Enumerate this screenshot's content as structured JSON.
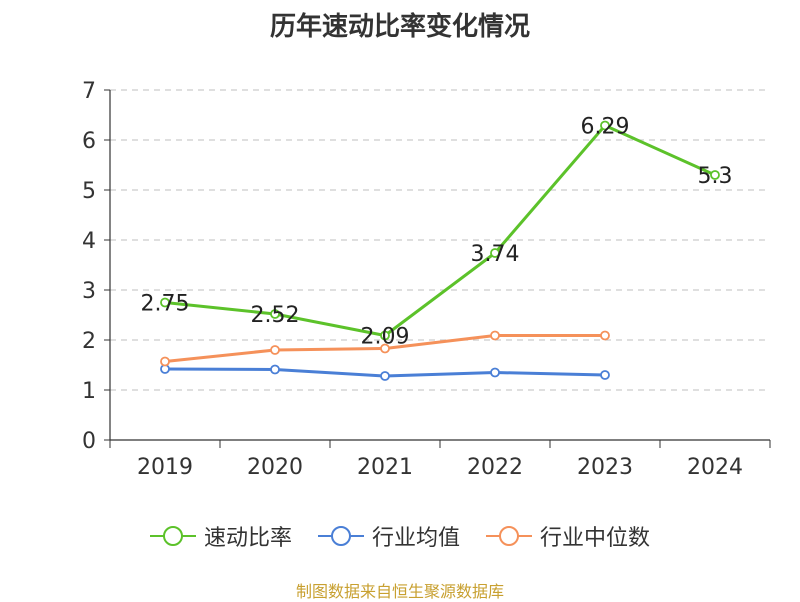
{
  "chart_data": {
    "type": "line",
    "title": "历年速动比率变化情况",
    "categories": [
      "2019",
      "2020",
      "2021",
      "2022",
      "2023",
      "2024"
    ],
    "y_ticks": [
      "0",
      "1",
      "2",
      "3",
      "4",
      "5",
      "6",
      "7"
    ],
    "ylim": [
      0,
      7
    ],
    "grid": true,
    "legend_position": "bottom",
    "series": [
      {
        "name": "速动比率",
        "color": "#5cc22a",
        "values": [
          2.75,
          2.52,
          2.09,
          3.74,
          6.29,
          5.3
        ],
        "data_labels": [
          "2.75",
          "2.52",
          "2.09",
          "3.74",
          "6.29",
          "5.3"
        ]
      },
      {
        "name": "行业均值",
        "color": "#4a7fd6",
        "values": [
          1.42,
          1.41,
          1.28,
          1.35,
          1.3,
          null
        ]
      },
      {
        "name": "行业中位数",
        "color": "#f5915a",
        "values": [
          1.57,
          1.8,
          1.83,
          2.09,
          2.09,
          null
        ]
      }
    ]
  },
  "source": {
    "text": "制图数据来自恒生聚源数据库",
    "color": "#c8a030"
  }
}
